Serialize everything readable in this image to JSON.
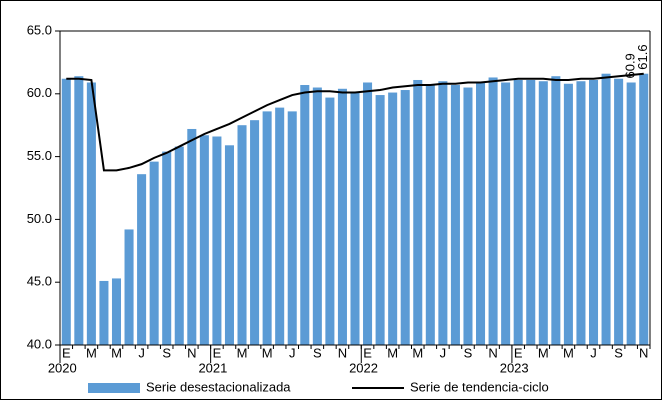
{
  "chart_data": {
    "type": "bar_line",
    "categories": [
      "E",
      null,
      "M",
      null,
      "M",
      null,
      "J",
      null,
      "S",
      null,
      "N",
      null,
      "E",
      null,
      "M",
      null,
      "M",
      null,
      "J",
      null,
      "S",
      null,
      "N",
      null,
      "E",
      null,
      "M",
      null,
      "M",
      null,
      "J",
      null,
      "S",
      null,
      "N",
      null,
      "E",
      null,
      "M",
      null,
      "M",
      null,
      "J",
      null,
      "S",
      null,
      "N"
    ],
    "years": [
      "2020",
      null,
      null,
      null,
      null,
      null,
      null,
      null,
      null,
      null,
      null,
      null,
      "2021",
      null,
      null,
      null,
      null,
      null,
      null,
      null,
      null,
      null,
      null,
      null,
      "2022",
      null,
      null,
      null,
      null,
      null,
      null,
      null,
      null,
      null,
      null,
      null,
      "2023",
      null,
      null,
      null,
      null,
      null,
      null,
      null,
      null,
      null,
      null
    ],
    "series": [
      {
        "name": "Serie desestacionalizada",
        "type": "bar",
        "color": "#5b9bd5",
        "values": [
          61.2,
          61.4,
          60.9,
          45.1,
          45.3,
          49.2,
          53.6,
          54.6,
          55.4,
          55.8,
          57.2,
          56.7,
          56.6,
          55.9,
          57.5,
          57.9,
          58.6,
          58.9,
          58.6,
          60.7,
          60.5,
          59.7,
          60.4,
          60.1,
          60.9,
          59.9,
          60.1,
          60.3,
          61.1,
          60.7,
          61.0,
          60.7,
          60.5,
          60.9,
          61.3,
          60.9,
          61.1,
          61.1,
          61.0,
          61.4,
          60.8,
          61.0,
          61.1,
          61.6,
          61.2,
          60.9,
          61.6
        ],
        "value_labels": [
          null,
          null,
          null,
          null,
          null,
          null,
          null,
          null,
          null,
          null,
          null,
          null,
          null,
          null,
          null,
          null,
          null,
          null,
          null,
          null,
          null,
          null,
          null,
          null,
          null,
          null,
          null,
          null,
          null,
          null,
          null,
          null,
          null,
          null,
          null,
          null,
          null,
          null,
          null,
          null,
          null,
          null,
          null,
          null,
          null,
          "60.9",
          "61.6"
        ]
      },
      {
        "name": "Serie de tendencia-ciclo",
        "type": "line",
        "color": "#000000",
        "values": [
          61.2,
          61.2,
          61.1,
          53.9,
          53.9,
          54.1,
          54.4,
          54.9,
          55.3,
          55.8,
          56.3,
          56.8,
          57.2,
          57.6,
          58.1,
          58.6,
          59.1,
          59.5,
          59.9,
          60.1,
          60.2,
          60.2,
          60.1,
          60.1,
          60.2,
          60.3,
          60.5,
          60.6,
          60.7,
          60.7,
          60.8,
          60.8,
          60.9,
          60.9,
          61.0,
          61.1,
          61.2,
          61.2,
          61.2,
          61.1,
          61.1,
          61.2,
          61.2,
          61.3,
          61.4,
          61.5,
          61.6
        ]
      }
    ],
    "ylim": [
      40,
      65
    ],
    "yticks": [
      {
        "value": 40,
        "label": "40.0"
      },
      {
        "value": 45,
        "label": "45.0"
      },
      {
        "value": 50,
        "label": "50.0"
      },
      {
        "value": 55,
        "label": "55.0"
      },
      {
        "value": 60,
        "label": "60.0"
      },
      {
        "value": 65,
        "label": "65.0"
      }
    ],
    "grid": false
  }
}
